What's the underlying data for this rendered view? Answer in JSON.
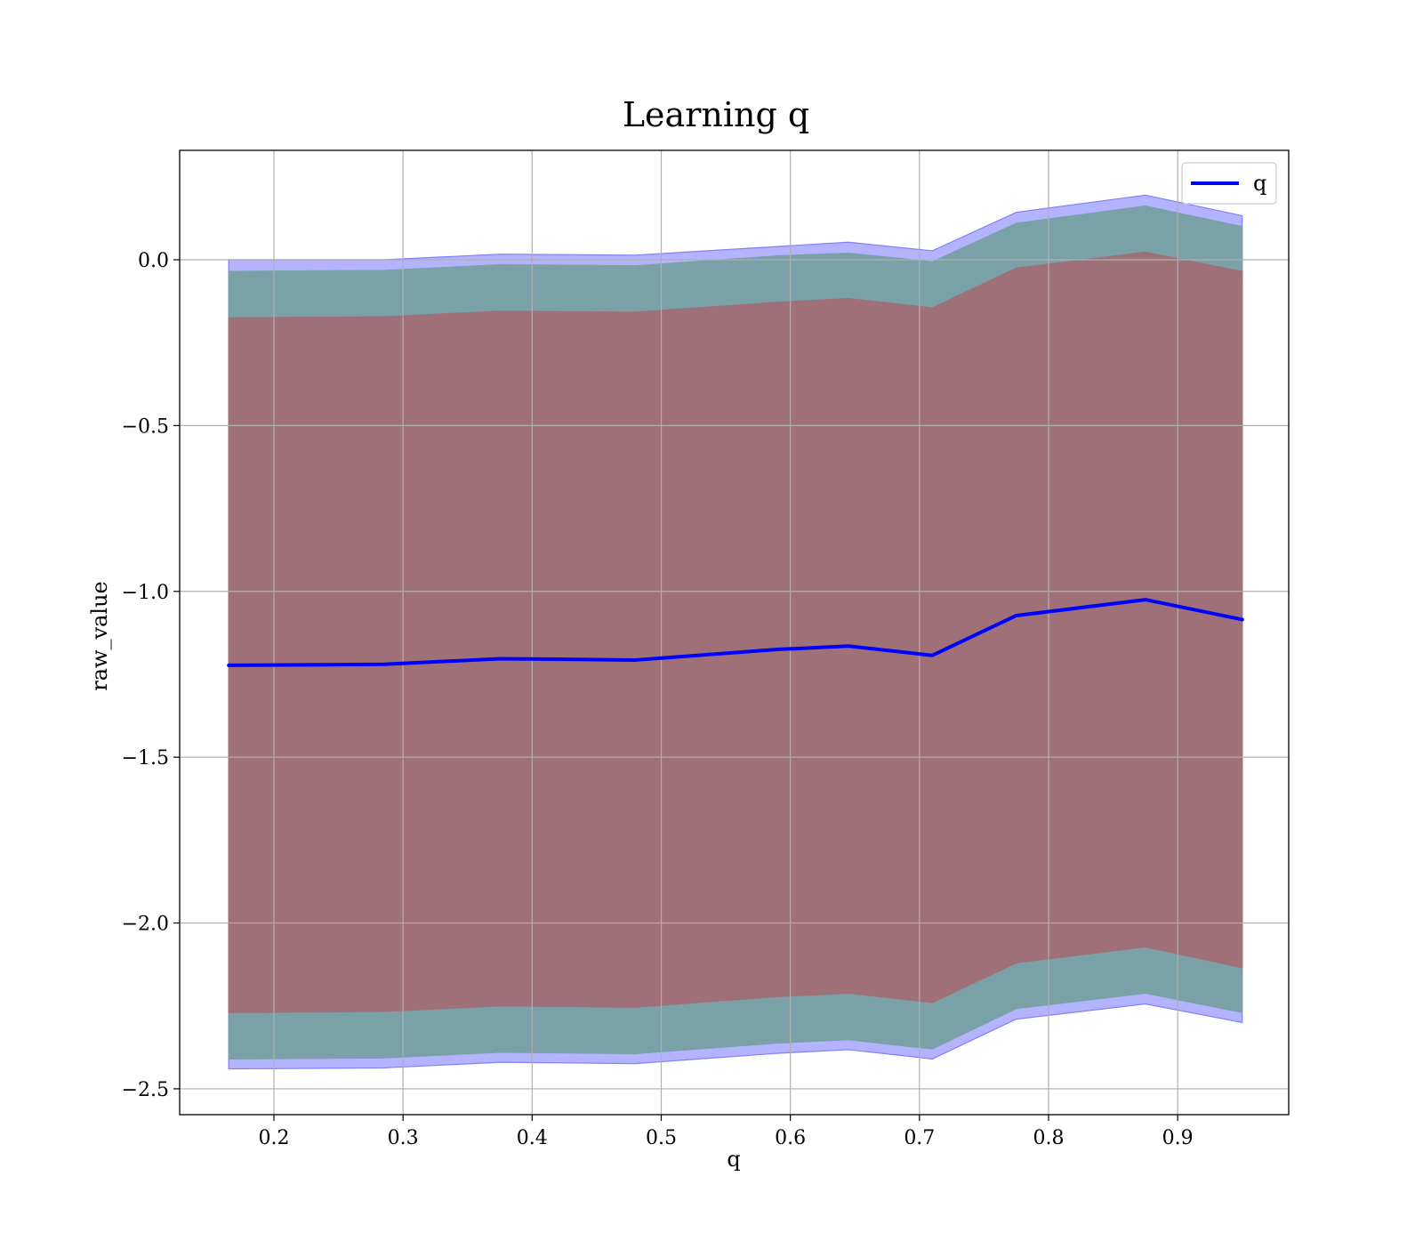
{
  "chart_data": {
    "type": "line",
    "title": "Learning q",
    "xlabel": "q",
    "ylabel": "raw_value",
    "xlim": [
      0.127,
      0.986
    ],
    "ylim": [
      -2.578,
      0.33
    ],
    "xticks": [
      0.2,
      0.3,
      0.4,
      0.5,
      0.6,
      0.7,
      0.8,
      0.9
    ],
    "xtick_labels": [
      "0.2",
      "0.3",
      "0.4",
      "0.5",
      "0.6",
      "0.7",
      "0.8",
      "0.9"
    ],
    "yticks": [
      0.0,
      -0.5,
      -1.0,
      -1.5,
      -2.0,
      -2.5
    ],
    "ytick_labels": [
      "0.0",
      "−0.5",
      "−1.0",
      "−1.5",
      "−2.0",
      "−2.5"
    ],
    "grid": true,
    "legend_position": "top-right",
    "x": [
      0.165,
      0.285,
      0.375,
      0.48,
      0.59,
      0.645,
      0.71,
      0.775,
      0.875,
      0.95
    ],
    "series": [
      {
        "name": "q",
        "color": "#0000ff",
        "values": [
          -1.223,
          -1.22,
          -1.203,
          -1.207,
          -1.175,
          -1.165,
          -1.193,
          -1.073,
          -1.025,
          -1.085
        ]
      }
    ],
    "bands": [
      {
        "color": "#8080ff",
        "upper": [
          0.0,
          0.0,
          0.017,
          0.014,
          0.04,
          0.053,
          0.027,
          0.143,
          0.195,
          0.133
        ],
        "lower": [
          -2.44,
          -2.437,
          -2.42,
          -2.424,
          -2.393,
          -2.382,
          -2.41,
          -2.29,
          -2.244,
          -2.3
        ]
      },
      {
        "color": "#7aa0a8",
        "upper": [
          -0.035,
          -0.032,
          -0.015,
          -0.018,
          0.012,
          0.02,
          -0.006,
          0.11,
          0.162,
          0.1
        ],
        "lower": [
          -2.41,
          -2.407,
          -2.39,
          -2.394,
          -2.362,
          -2.352,
          -2.38,
          -2.258,
          -2.212,
          -2.27
        ]
      },
      {
        "color": "#a07078",
        "upper": [
          -0.175,
          -0.172,
          -0.155,
          -0.158,
          -0.128,
          -0.117,
          -0.145,
          -0.025,
          0.023,
          -0.035
        ],
        "lower": [
          -2.27,
          -2.267,
          -2.25,
          -2.254,
          -2.222,
          -2.212,
          -2.24,
          -2.12,
          -2.072,
          -2.135
        ]
      }
    ]
  }
}
